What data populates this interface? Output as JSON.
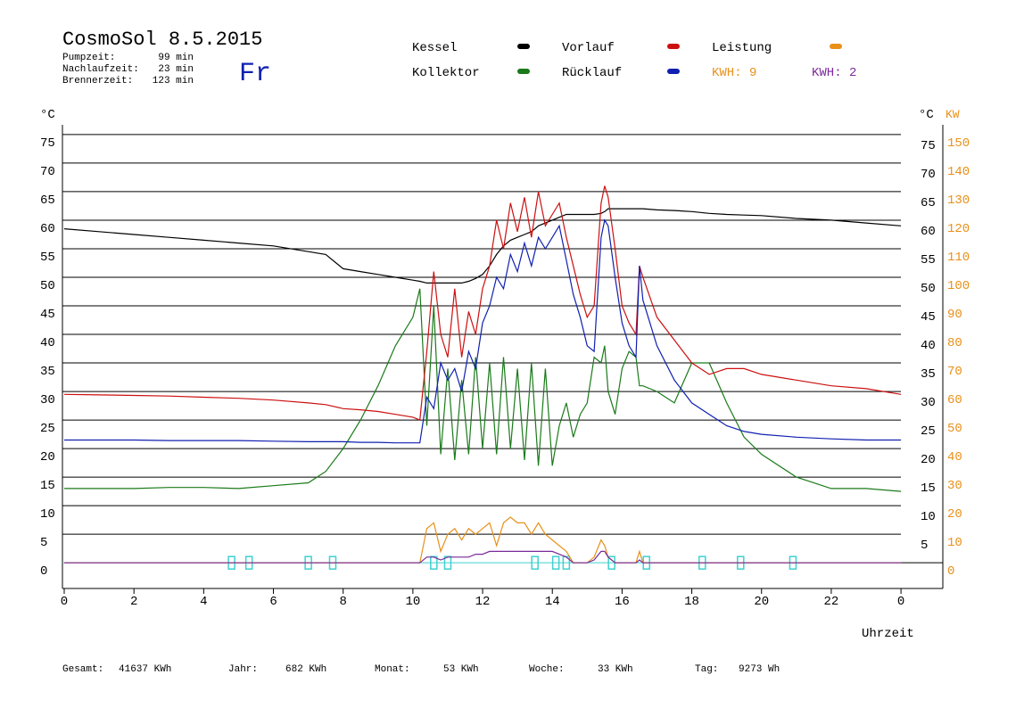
{
  "chart_data": {
    "type": "line",
    "title": "CosmoSol 8.5.2015",
    "weekday": "Fr",
    "info": [
      {
        "label": "Pumpzeit:",
        "value": "99 min"
      },
      {
        "label": "Nachlaufzeit:",
        "value": "23 min"
      },
      {
        "label": "Brennerzeit:",
        "value": "123 min"
      }
    ],
    "kwh_labels": [
      {
        "text": "KWH: 9",
        "color": "#e8901a"
      },
      {
        "text": "KWH: 2",
        "color": "#7a2a9a"
      }
    ],
    "y_unit": "°C",
    "y2_unit_c": "°C",
    "y2_unit": "KW",
    "xlabel": "Uhrzeit",
    "x": [
      0,
      1,
      2,
      3,
      4,
      5,
      6,
      7,
      7.5,
      8,
      8.5,
      9,
      9.5,
      10,
      10.2,
      10.4,
      10.6,
      10.8,
      11,
      11.2,
      11.4,
      11.6,
      11.8,
      12,
      12.2,
      12.4,
      12.6,
      12.8,
      13,
      13.2,
      13.4,
      13.6,
      13.8,
      14,
      14.2,
      14.4,
      14.6,
      14.8,
      15,
      15.2,
      15.4,
      15.5,
      15.6,
      15.8,
      16,
      16.2,
      16.4,
      16.5,
      16.6,
      17,
      17.5,
      18,
      18.5,
      19,
      19.5,
      20,
      21,
      22,
      23,
      24
    ],
    "xlim": [
      0,
      25.2
    ],
    "xticks": [
      0,
      2,
      4,
      6,
      8,
      10,
      12,
      14,
      16,
      18,
      20,
      22,
      {
        "value": 24,
        "label": "0"
      }
    ],
    "ylim": [
      -4.5,
      76.7
    ],
    "yticks": [
      0,
      5,
      10,
      15,
      20,
      25,
      30,
      35,
      40,
      45,
      50,
      55,
      60,
      65,
      70,
      75
    ],
    "yticks_right": [
      5,
      10,
      15,
      20,
      25,
      30,
      35,
      40,
      45,
      50,
      55,
      60,
      65,
      70,
      75
    ],
    "y2lim": [
      -9,
      153.4
    ],
    "y2ticks": [
      0,
      10,
      20,
      30,
      40,
      50,
      60,
      70,
      80,
      90,
      100,
      110,
      120,
      130,
      140,
      150
    ],
    "y2color": "#e8901a",
    "grid": true,
    "zero_line_color": "#40d0d0",
    "series": [
      {
        "name": "Kessel",
        "color": "#000000",
        "values": [
          58.5,
          58,
          57.5,
          57,
          56.5,
          56,
          55.5,
          54.5,
          54,
          51.5,
          51,
          50.5,
          50,
          49.5,
          49.3,
          49,
          49,
          49,
          49,
          49,
          49,
          49.3,
          49.8,
          50.5,
          52,
          54,
          55.5,
          56.5,
          57,
          57.5,
          58,
          59,
          59.5,
          60,
          60.5,
          61,
          61,
          61,
          61,
          61,
          61.2,
          61.5,
          62,
          62,
          62,
          62,
          62,
          62,
          62,
          61.8,
          61.7,
          61.5,
          61.2,
          61,
          60.9,
          60.8,
          60.3,
          60,
          59.5,
          59
        ]
      },
      {
        "name": "Kollektor",
        "color": "#1a7a1a",
        "values": [
          13,
          13,
          13,
          13.2,
          13.2,
          13,
          13.5,
          14,
          16,
          20,
          25,
          31,
          38,
          43,
          48,
          24,
          45,
          19,
          34,
          18,
          32,
          19,
          36,
          20,
          35,
          19,
          36,
          20,
          34,
          18,
          35,
          17,
          34,
          17,
          24,
          28,
          22,
          26,
          28,
          36,
          35,
          38,
          30,
          26,
          34,
          37,
          36,
          31,
          31,
          30,
          28,
          35,
          35,
          28,
          22,
          19,
          15,
          13,
          13,
          12.5
        ]
      },
      {
        "name": "Vorlauf",
        "color": "#cc1010",
        "values": [
          29.5,
          29.4,
          29.3,
          29.2,
          29,
          28.8,
          28.5,
          28,
          27.7,
          27,
          26.8,
          26.5,
          26,
          25.5,
          25,
          37,
          51,
          40,
          36,
          48,
          36,
          44,
          40,
          48,
          52,
          60,
          55,
          63,
          58,
          64,
          57,
          65,
          59,
          61,
          63,
          57,
          52,
          47,
          43,
          45,
          63,
          66,
          64,
          55,
          45,
          42,
          40,
          52,
          50,
          43,
          39,
          35,
          33,
          34,
          34,
          33,
          32,
          31,
          30.5,
          29.5
        ]
      },
      {
        "name": "Rücklauf",
        "color": "#1020b0",
        "values": [
          21.5,
          21.5,
          21.5,
          21.4,
          21.4,
          21.4,
          21.3,
          21.2,
          21.2,
          21.2,
          21.1,
          21.1,
          21,
          21,
          21,
          29,
          27,
          35,
          32,
          34,
          30,
          37,
          34,
          42,
          45,
          50,
          48,
          54,
          51,
          56,
          52,
          57,
          55,
          57,
          59,
          53,
          47,
          43,
          38,
          37,
          57,
          60,
          59,
          50,
          42,
          38,
          36,
          52,
          46,
          38,
          32,
          28,
          26,
          24,
          23,
          22.5,
          22,
          21.7,
          21.5,
          21.5
        ]
      },
      {
        "name": "Leistung",
        "color": "#e8901a",
        "axis": "y2",
        "values": [
          0,
          0,
          0,
          0,
          0,
          0,
          0,
          0,
          0,
          0,
          0,
          0,
          0,
          0,
          0,
          12,
          14,
          4,
          10,
          12,
          8,
          12,
          10,
          12,
          14,
          6,
          14,
          16,
          14,
          14,
          10,
          14,
          10,
          8,
          6,
          4,
          0,
          0,
          0,
          2,
          8,
          6,
          2,
          0,
          0,
          0,
          0,
          4,
          0,
          0,
          0,
          0,
          0,
          0,
          0,
          0,
          0,
          0,
          0,
          0
        ]
      },
      {
        "name": "KWH: 2",
        "color": "#7a2a9a",
        "marker": false,
        "values": [
          0,
          0,
          0,
          0,
          0,
          0,
          0,
          0,
          0,
          0,
          0,
          0,
          0,
          0,
          0,
          1,
          1,
          0.5,
          1,
          1,
          1,
          1,
          1.5,
          1.5,
          2,
          2,
          2,
          2,
          2,
          2,
          2,
          2,
          2,
          2,
          1.5,
          1,
          0,
          0,
          0,
          0.5,
          2,
          2,
          1,
          0,
          0,
          0,
          0,
          0.5,
          0,
          0,
          0,
          0,
          0,
          0,
          0,
          0,
          0,
          0,
          0,
          0
        ]
      }
    ],
    "events": {
      "color": "#40d0d0",
      "x": [
        4.8,
        5.3,
        7,
        7.7,
        10.6,
        11,
        13.5,
        14.1,
        14.4,
        15.7,
        16.7,
        18.3,
        19.4,
        20.9
      ]
    },
    "totals": [
      {
        "label": "Gesamt:",
        "value": "41637 KWh"
      },
      {
        "label": "Jahr:",
        "value": "682 KWh"
      },
      {
        "label": "Monat:",
        "value": "53 KWh"
      },
      {
        "label": "Woche:",
        "value": "33 KWh"
      },
      {
        "label": "Tag:",
        "value": "9273 Wh"
      }
    ]
  }
}
